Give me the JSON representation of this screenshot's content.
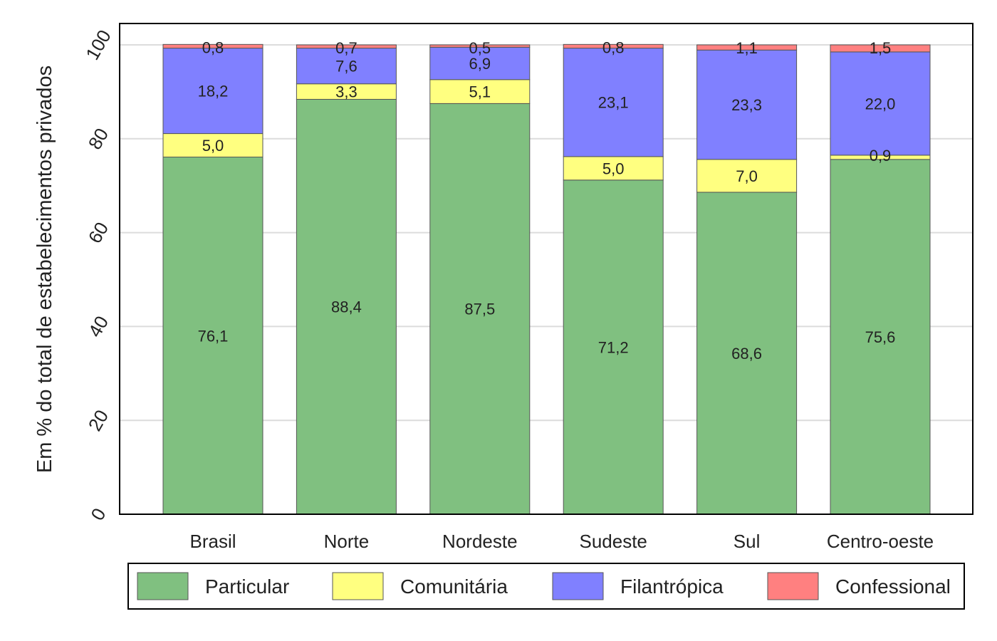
{
  "chart_data": {
    "type": "bar",
    "stacked": true,
    "title": "",
    "xlabel": "",
    "ylabel": "Em % do total de estabelecimentos privados",
    "ylim": [
      0,
      100
    ],
    "yticks": [
      "0",
      "20",
      "40",
      "60",
      "80",
      "100"
    ],
    "grid": true,
    "legend_position": "bottom",
    "categories": [
      "Brasil",
      "Norte",
      "Nordeste",
      "Sudeste",
      "Sul",
      "Centro-oeste"
    ],
    "series": [
      {
        "name": "Particular",
        "color": "#80c080",
        "values": [
          76.1,
          88.4,
          87.5,
          71.2,
          68.6,
          75.6
        ],
        "labels": [
          "76,1",
          "88,4",
          "87,5",
          "71,2",
          "68,6",
          "75,6"
        ]
      },
      {
        "name": "Comunitária",
        "color": "#ffff80",
        "values": [
          5.0,
          3.3,
          5.1,
          5.0,
          7.0,
          0.9
        ],
        "labels": [
          "5,0",
          "3,3",
          "5,1",
          "5,0",
          "7,0",
          "0,9"
        ]
      },
      {
        "name": "Filantrópica",
        "color": "#8080ff",
        "values": [
          18.2,
          7.6,
          6.9,
          23.1,
          23.3,
          22.0
        ],
        "labels": [
          "18,2",
          "7,6",
          "6,9",
          "23,1",
          "23,3",
          "22,0"
        ]
      },
      {
        "name": "Confessional",
        "color": "#ff8080",
        "values": [
          0.8,
          0.7,
          0.5,
          0.8,
          1.1,
          1.5
        ],
        "labels": [
          "0,8",
          "0,7",
          "0,5",
          "0,8",
          "1,1",
          "1,5"
        ]
      }
    ]
  }
}
